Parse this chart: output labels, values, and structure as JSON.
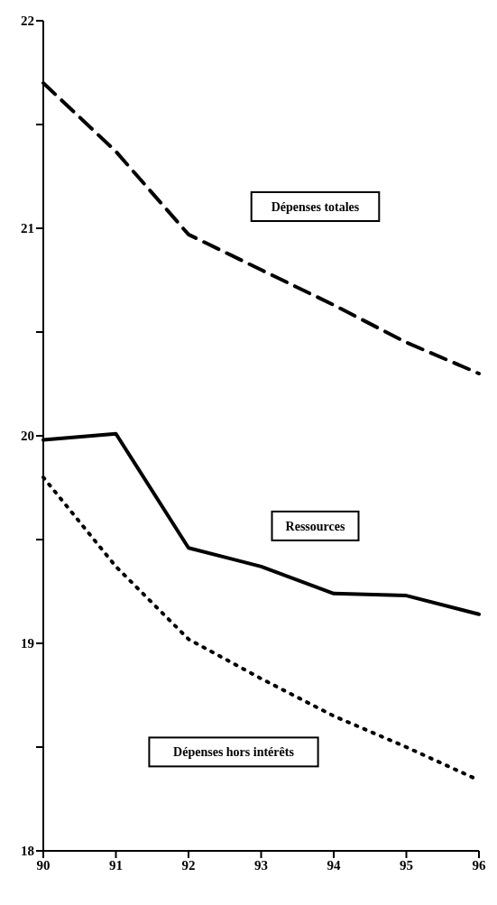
{
  "chart_data": {
    "type": "line",
    "categories": [
      "90",
      "91",
      "92",
      "93",
      "94",
      "95",
      "96"
    ],
    "ylim": [
      18,
      22
    ],
    "yticks": [
      18,
      {
        "value": 18.5,
        "label": null
      },
      19,
      {
        "value": 19.5,
        "label": null
      },
      20,
      {
        "value": 20.5,
        "label": null
      },
      21,
      {
        "value": 21.5,
        "label": null
      },
      22
    ],
    "marker": "none",
    "series": [
      {
        "name": "Dépenses totales",
        "color": "#000000",
        "line_style": "dashed",
        "values": [
          21.7,
          21.37,
          20.97,
          20.8,
          20.63,
          20.45,
          20.3
        ]
      },
      {
        "name": "Ressources",
        "color": "#000000",
        "line_style": "solid",
        "values": [
          19.98,
          20.01,
          19.46,
          19.37,
          19.24,
          19.23,
          19.14
        ]
      },
      {
        "name": "Dépenses hors intérêts",
        "color": "#000000",
        "line_style": "dotted",
        "values": [
          19.8,
          19.37,
          19.02,
          18.83,
          18.65,
          18.5,
          18.34
        ]
      }
    ]
  }
}
